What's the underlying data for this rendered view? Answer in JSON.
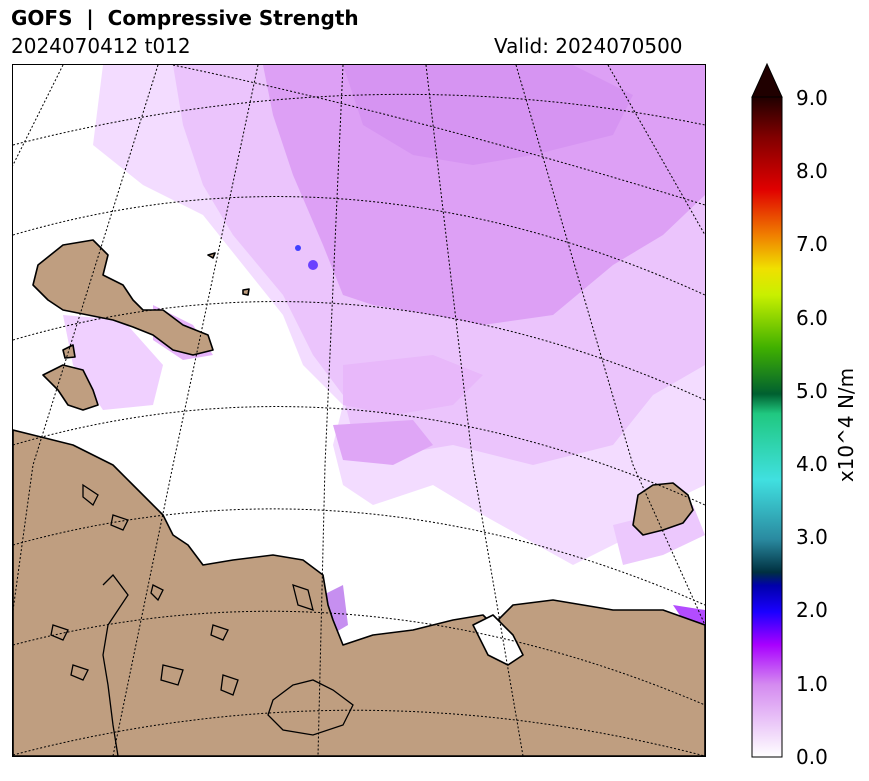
{
  "header": {
    "title": "GOFS  |  Compressive Strength",
    "run": "2024070412 t012",
    "valid": "Valid: 2024070500"
  },
  "colorbar": {
    "label": "x10^4 N/m",
    "ticks": [
      "0.0",
      "1.0",
      "2.0",
      "3.0",
      "4.0",
      "5.0",
      "6.0",
      "7.0",
      "8.0",
      "9.0"
    ],
    "min": 0.0,
    "max": 9.0,
    "extend": "max"
  },
  "colors": {
    "land": "#bf9e80",
    "ice_light": "#f2d9ff",
    "ice_mid": "#e0a8f7",
    "ice_strong": "#d48af0",
    "ice_max": "#a800ff"
  }
}
